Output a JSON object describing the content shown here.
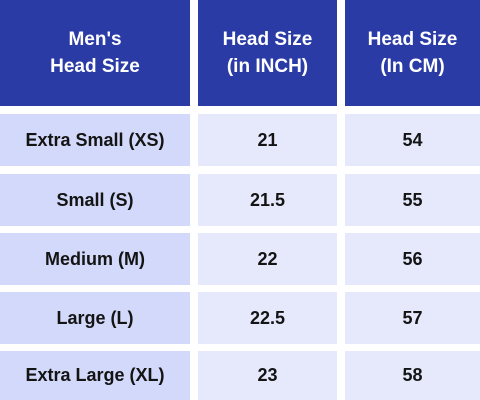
{
  "header": {
    "col0": [
      "Men's",
      "Head Size"
    ],
    "col1": [
      "Head Size",
      "(in INCH)"
    ],
    "col2": [
      "Head Size",
      "(In CM)"
    ]
  },
  "rows": [
    {
      "size": "Extra Small (XS)",
      "inch": "21",
      "cm": "54"
    },
    {
      "size": "Small (S)",
      "inch": "21.5",
      "cm": "55"
    },
    {
      "size": "Medium (M)",
      "inch": "22",
      "cm": "56"
    },
    {
      "size": "Large (L)",
      "inch": "22.5",
      "cm": "57"
    },
    {
      "size": "Extra Large (XL)",
      "inch": "23",
      "cm": "58"
    }
  ],
  "colors": {
    "header_bg": "#2a3ba6",
    "header_text": "#ffffff",
    "label_col_bg": "#d3d9fa",
    "value_col_bg": "#e6e9fc",
    "body_text": "#141414"
  }
}
